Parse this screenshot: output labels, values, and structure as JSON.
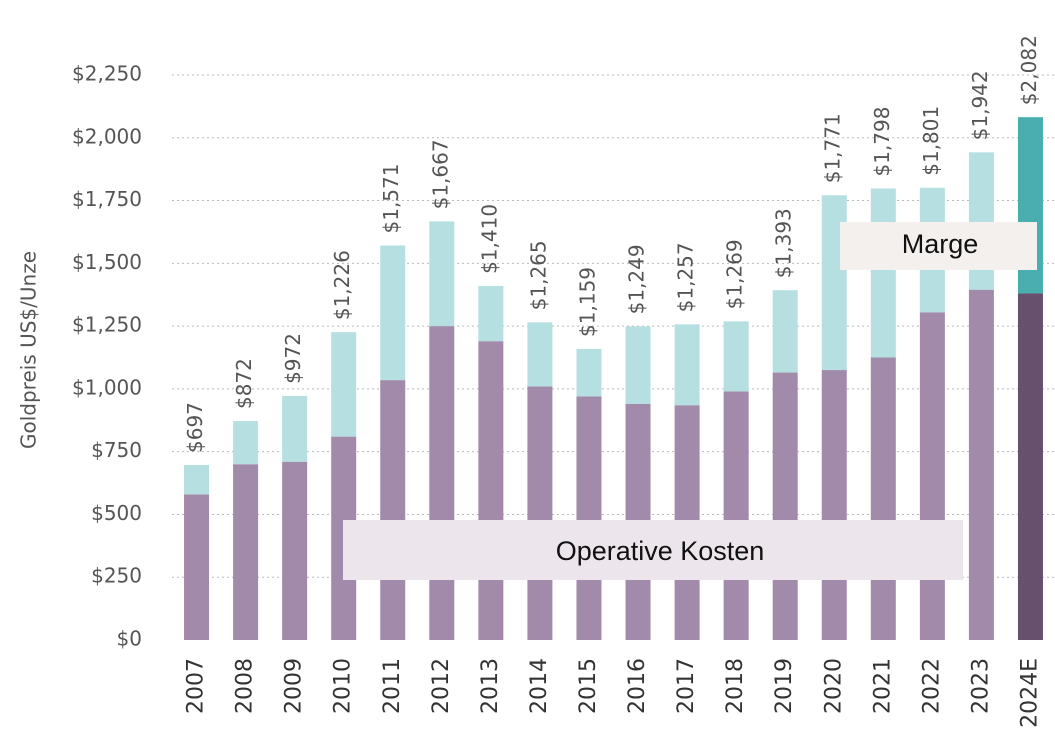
{
  "chart_data": {
    "type": "bar",
    "stacked": true,
    "ylabel": "Goldpreis US$/Unze",
    "categories": [
      "2007",
      "2008",
      "2009",
      "2010",
      "2011",
      "2012",
      "2013",
      "2014",
      "2015",
      "2016",
      "2017",
      "2018",
      "2019",
      "2020",
      "2021",
      "2022",
      "2023",
      "2024E"
    ],
    "series": [
      {
        "name": "Operative Kosten",
        "color": "#a28aaa",
        "colors": [
          "#a28aaa",
          "#a28aaa",
          "#a28aaa",
          "#a28aaa",
          "#a28aaa",
          "#a28aaa",
          "#a28aaa",
          "#a28aaa",
          "#a28aaa",
          "#a28aaa",
          "#a28aaa",
          "#a28aaa",
          "#a28aaa",
          "#a28aaa",
          "#a28aaa",
          "#a28aaa",
          "#a28aaa",
          "#66506e"
        ],
        "values": [
          580,
          700,
          710,
          810,
          1035,
          1250,
          1190,
          1010,
          970,
          940,
          935,
          990,
          1065,
          1075,
          1125,
          1305,
          1395,
          1380
        ]
      },
      {
        "name": "Marge",
        "color": "#b5dfe0",
        "colors": [
          "#b5dfe0",
          "#b5dfe0",
          "#b5dfe0",
          "#b5dfe0",
          "#b5dfe0",
          "#b5dfe0",
          "#b5dfe0",
          "#b5dfe0",
          "#b5dfe0",
          "#b5dfe0",
          "#b5dfe0",
          "#b5dfe0",
          "#b5dfe0",
          "#b5dfe0",
          "#b5dfe0",
          "#b5dfe0",
          "#b5dfe0",
          "#4aaeae"
        ],
        "values": [
          117,
          172,
          262,
          416,
          536,
          417,
          220,
          255,
          189,
          309,
          322,
          279,
          328,
          696,
          673,
          496,
          547,
          702
        ]
      }
    ],
    "totals": {
      "values": [
        697,
        872,
        972,
        1226,
        1571,
        1667,
        1410,
        1265,
        1159,
        1249,
        1257,
        1269,
        1393,
        1771,
        1798,
        1801,
        1942,
        2082
      ],
      "value_labels": [
        "$697",
        "$872",
        "$972",
        "$1,226",
        "$1,571",
        "$1,667",
        "$1,410",
        "$1,265",
        "$1,159",
        "$1,249",
        "$1,257",
        "$1,269",
        "$1,393",
        "$1,771",
        "$1,798",
        "$1,801",
        "$1,942",
        "$2,082"
      ]
    },
    "ylim": [
      0,
      2250
    ],
    "yticks": [
      {
        "value": 0,
        "label": "$0"
      },
      {
        "value": 250,
        "label": "$250"
      },
      {
        "value": 500,
        "label": "$500"
      },
      {
        "value": 750,
        "label": "$750"
      },
      {
        "value": 1000,
        "label": "$1,000"
      },
      {
        "value": 1250,
        "label": "$1,250"
      },
      {
        "value": 1500,
        "label": "$1,500"
      },
      {
        "value": 1750,
        "label": "$1,750"
      },
      {
        "value": 2000,
        "label": "$2,000"
      },
      {
        "value": 2250,
        "label": "$2,250"
      }
    ],
    "grid": true
  }
}
